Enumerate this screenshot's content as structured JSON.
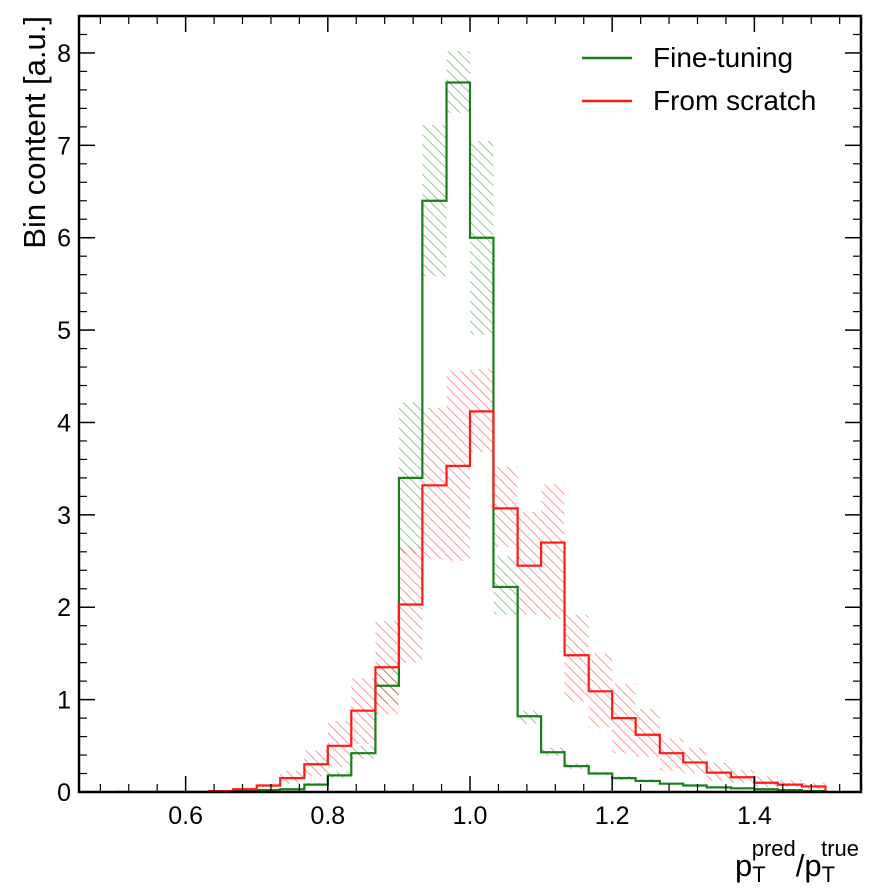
{
  "chart_data": {
    "type": "histogram-step",
    "xlabel": "p_T^pred/p_T^true",
    "xlabel_parts": {
      "base": "p",
      "sub": "T",
      "sup_pred": "pred",
      "sep": "/",
      "sup_true": "true"
    },
    "ylabel": "Bin content [a.u.]",
    "xlim": [
      0.45,
      1.55
    ],
    "ylim": [
      0,
      8.4
    ],
    "xticks": [
      0.6,
      0.8,
      1.0,
      1.2,
      1.4
    ],
    "xtick_labels": [
      "0.6",
      "0.8",
      "1.0",
      "1.2",
      "1.4"
    ],
    "yticks": [
      0,
      1,
      2,
      3,
      4,
      5,
      6,
      7,
      8
    ],
    "ytick_labels": [
      "0",
      "1",
      "2",
      "3",
      "4",
      "5",
      "6",
      "7",
      "8"
    ],
    "bin_edges": [
      0.5,
      0.533,
      0.567,
      0.6,
      0.633,
      0.667,
      0.7,
      0.733,
      0.767,
      0.8,
      0.833,
      0.867,
      0.9,
      0.933,
      0.967,
      1.0,
      1.033,
      1.067,
      1.1,
      1.133,
      1.167,
      1.2,
      1.233,
      1.267,
      1.3,
      1.333,
      1.367,
      1.4,
      1.433,
      1.467,
      1.5
    ],
    "legend_position": "top-right",
    "series": [
      {
        "name": "Fine-tuning",
        "color": "#1a7f1a",
        "values": [
          0,
          0,
          0,
          0,
          0,
          0.01,
          0.02,
          0.03,
          0.08,
          0.18,
          0.42,
          1.15,
          3.4,
          6.4,
          7.68,
          6.0,
          2.22,
          0.82,
          0.43,
          0.28,
          0.2,
          0.15,
          0.12,
          0.09,
          0.07,
          0.05,
          0.04,
          0.03,
          0.02,
          0.01
        ],
        "err_low": [
          0,
          0,
          0,
          0,
          0,
          0.01,
          0.02,
          0.03,
          0.07,
          0.15,
          0.36,
          0.95,
          2.58,
          5.58,
          7.35,
          4.95,
          1.92,
          0.74,
          0.39,
          0.25,
          0.18,
          0.13,
          0.1,
          0.08,
          0.06,
          0.04,
          0.03,
          0.02,
          0.01,
          0.01
        ],
        "err_high": [
          0,
          0,
          0,
          0,
          0,
          0.02,
          0.03,
          0.04,
          0.1,
          0.22,
          0.5,
          1.38,
          4.22,
          7.22,
          8.02,
          7.05,
          2.55,
          0.88,
          0.48,
          0.31,
          0.22,
          0.17,
          0.14,
          0.1,
          0.08,
          0.06,
          0.05,
          0.04,
          0.03,
          0.02
        ]
      },
      {
        "name": "From scratch",
        "color": "#ff1a1a",
        "values": [
          0,
          0,
          0,
          0,
          0.01,
          0.03,
          0.07,
          0.15,
          0.3,
          0.5,
          0.88,
          1.35,
          2.03,
          3.32,
          3.53,
          4.12,
          3.07,
          2.45,
          2.7,
          1.48,
          1.09,
          0.8,
          0.62,
          0.42,
          0.32,
          0.21,
          0.16,
          0.1,
          0.08,
          0.06
        ],
        "err_low": [
          0,
          0,
          0,
          0,
          0.01,
          0.02,
          0.05,
          0.09,
          0.17,
          0.27,
          0.52,
          0.84,
          1.4,
          2.52,
          2.5,
          3.68,
          2.65,
          1.92,
          1.87,
          0.98,
          0.7,
          0.42,
          0.38,
          0.23,
          0.2,
          0.12,
          0.1,
          0.05,
          0.05,
          0.03
        ],
        "err_high": [
          0,
          0,
          0,
          0,
          0.02,
          0.04,
          0.09,
          0.23,
          0.45,
          0.77,
          1.23,
          1.85,
          2.66,
          4.16,
          4.56,
          4.58,
          3.52,
          3.03,
          3.33,
          1.92,
          1.5,
          1.17,
          0.9,
          0.58,
          0.48,
          0.32,
          0.24,
          0.17,
          0.13,
          0.1
        ]
      }
    ]
  }
}
